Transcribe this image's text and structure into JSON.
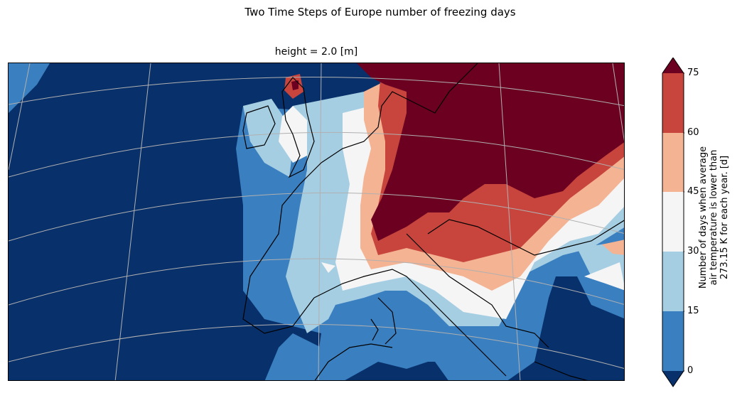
{
  "figure": {
    "suptitle": "Two Time Steps of Europe number of freezing days",
    "subtitle": "height = 2.0 [m]"
  },
  "colorbar": {
    "label_lines": [
      "Number of days when average",
      "air temperature is lower than",
      "273.15 K for each year. [d]"
    ],
    "ticks": [
      "0",
      "15",
      "30",
      "45",
      "60",
      "75"
    ],
    "levels": [
      0,
      15,
      30,
      45,
      60,
      75
    ],
    "extend": "both",
    "colormap": "RdBu_r",
    "colors": {
      "under": "#08306b",
      "0-15": "#3a7fbf",
      "15-30": "#a6cee3",
      "30-45": "#f5f5f5",
      "45-60": "#f4b393",
      "60-75": "#c8453e",
      "over": "#6b0021"
    }
  },
  "map": {
    "region": "Europe",
    "projection": "conic",
    "gridlines": true,
    "coastlines": true
  }
}
